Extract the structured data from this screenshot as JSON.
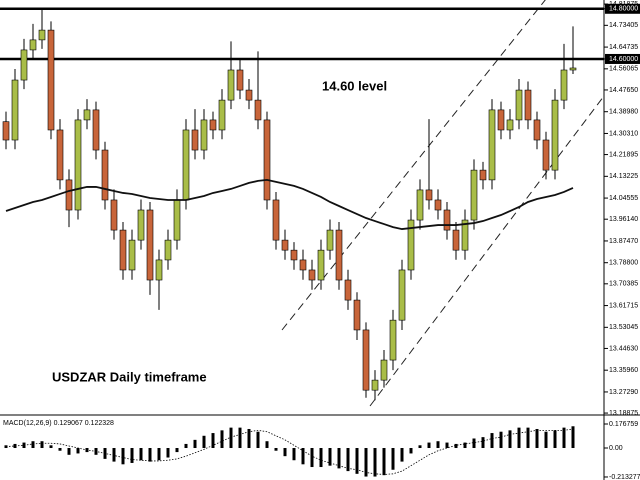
{
  "chart_data": [
    {
      "type": "candlestick",
      "annotations": [
        "14.60 level",
        "USDZAR Daily timeframe"
      ],
      "ylim": [
        13.185,
        14.835
      ],
      "yticks": [
        14.81875,
        {
          "value": 14.8,
          "label": "14.80000"
        },
        14.73405,
        14.64735,
        {
          "value": 14.6,
          "label": "14.60000"
        },
        14.56065,
        {
          "value": 14.4765,
          "label": "14.47650"
        },
        {
          "value": 14.3898,
          "label": "14.38980"
        },
        {
          "value": 14.3031,
          "label": "14.30310"
        },
        14.21895,
        14.13225,
        14.04555,
        {
          "value": 13.9614,
          "label": "13.96140"
        },
        {
          "value": 13.8747,
          "label": "13.87470"
        },
        {
          "value": 13.788,
          "label": "13.78800"
        },
        13.70385,
        13.61715,
        13.53045,
        {
          "value": 13.4463,
          "label": "13.44630"
        },
        {
          "value": 13.3596,
          "label": "13.35960"
        },
        {
          "value": 13.2729,
          "label": "13.27290"
        },
        13.18875
      ],
      "levels": [
        14.8,
        14.6
      ],
      "up_color": "#a9bd48",
      "down_color": "#c8653a",
      "open": [
        14.35,
        14.277,
        14.516,
        14.636,
        14.676,
        14.715,
        14.317,
        14.118,
        13.998,
        14.357,
        14.397,
        14.237,
        14.038,
        13.918,
        13.759,
        13.878,
        13.998,
        13.719,
        13.799,
        13.878,
        14.038,
        14.317,
        14.237,
        14.357,
        14.317,
        14.436,
        14.556,
        14.476,
        14.436,
        14.357,
        14.038,
        13.878,
        13.838,
        13.799,
        13.759,
        13.719,
        13.838,
        13.918,
        13.719,
        13.639,
        13.52,
        13.28,
        13.32,
        13.4,
        13.559,
        13.759,
        13.958,
        14.078,
        14.038,
        13.998,
        13.918,
        13.838,
        13.958,
        14.157,
        14.118,
        14.397,
        14.317,
        14.357,
        14.476,
        14.357,
        14.277,
        14.157,
        14.436,
        14.556
      ],
      "high": [
        14.39,
        14.56,
        14.68,
        14.74,
        14.8,
        14.75,
        14.36,
        14.16,
        14.4,
        14.44,
        14.43,
        14.27,
        14.08,
        13.95,
        13.92,
        14.04,
        14.03,
        13.84,
        13.92,
        14.08,
        14.36,
        14.4,
        14.4,
        14.39,
        14.48,
        14.67,
        14.6,
        14.52,
        14.63,
        14.39,
        14.07,
        13.92,
        13.87,
        13.84,
        13.8,
        13.88,
        13.96,
        13.95,
        13.76,
        13.67,
        13.55,
        13.36,
        13.44,
        13.6,
        13.8,
        14.0,
        14.12,
        14.36,
        14.08,
        14.03,
        13.95,
        14.0,
        14.2,
        14.19,
        14.44,
        14.43,
        14.4,
        14.52,
        14.51,
        14.39,
        14.31,
        14.48,
        14.66,
        14.73
      ],
      "low": [
        14.24,
        14.24,
        14.48,
        14.6,
        14.64,
        14.28,
        14.08,
        13.93,
        13.96,
        14.32,
        14.2,
        14.0,
        13.88,
        13.72,
        13.72,
        13.84,
        13.66,
        13.6,
        13.76,
        13.84,
        14.0,
        14.2,
        14.2,
        14.28,
        14.28,
        14.4,
        14.44,
        14.4,
        14.32,
        14.0,
        13.84,
        13.8,
        13.76,
        13.72,
        13.68,
        13.68,
        13.8,
        13.68,
        13.6,
        13.48,
        13.25,
        13.24,
        13.29,
        13.36,
        13.52,
        13.72,
        13.92,
        14.0,
        13.96,
        13.88,
        13.8,
        13.8,
        13.92,
        14.08,
        14.08,
        14.28,
        14.28,
        14.32,
        14.32,
        14.24,
        14.12,
        14.12,
        14.4,
        14.54
      ],
      "close": [
        14.277,
        14.516,
        14.636,
        14.676,
        14.715,
        14.317,
        14.118,
        13.998,
        14.357,
        14.397,
        14.237,
        14.038,
        13.918,
        13.759,
        13.878,
        13.998,
        13.719,
        13.799,
        13.878,
        14.038,
        14.317,
        14.237,
        14.357,
        14.317,
        14.436,
        14.556,
        14.476,
        14.436,
        14.357,
        14.038,
        13.878,
        13.838,
        13.799,
        13.759,
        13.719,
        13.838,
        13.918,
        13.719,
        13.639,
        13.52,
        13.28,
        13.32,
        13.4,
        13.559,
        13.759,
        13.958,
        14.078,
        14.038,
        13.998,
        13.918,
        13.838,
        13.958,
        14.157,
        14.118,
        14.397,
        14.317,
        14.357,
        14.476,
        14.357,
        14.277,
        14.157,
        14.436,
        14.556,
        14.564
      ],
      "series": [
        {
          "color": "#111111",
          "values": [
            13.994,
            14.006,
            14.018,
            14.03,
            14.038,
            14.05,
            14.062,
            14.074,
            14.082,
            14.09,
            14.09,
            14.082,
            14.074,
            14.066,
            14.062,
            14.054,
            14.046,
            14.042,
            14.038,
            14.038,
            14.038,
            14.046,
            14.054,
            14.066,
            14.074,
            14.082,
            14.094,
            14.106,
            14.114,
            14.118,
            14.11,
            14.102,
            14.094,
            14.082,
            14.066,
            14.05,
            14.03,
            14.014,
            13.998,
            13.982,
            13.966,
            13.954,
            13.942,
            13.93,
            13.922,
            13.926,
            13.93,
            13.934,
            13.938,
            13.938,
            13.938,
            13.942,
            13.946,
            13.954,
            13.966,
            13.978,
            13.994,
            14.01,
            14.03,
            14.042,
            14.05,
            14.058,
            14.07,
            14.086
          ]
        }
      ]
    },
    {
      "type": "bar",
      "title": "MACD(12,26,9) 0.129067 0.122328",
      "ylim": [
        -0.2355,
        0.2209
      ],
      "yticks": [
        0.176759,
        {
          "value": 0,
          "label": "0.00"
        },
        -0.213277
      ],
      "series": [
        {
          "color": "#000000",
          "values": [
            0.02,
            0.03,
            0.04,
            0.05,
            0.05,
            0.02,
            -0.02,
            -0.05,
            -0.04,
            -0.03,
            -0.05,
            -0.08,
            -0.1,
            -0.12,
            -0.11,
            -0.09,
            -0.1,
            -0.09,
            -0.07,
            -0.03,
            0.03,
            0.06,
            0.09,
            0.11,
            0.13,
            0.15,
            0.15,
            0.14,
            0.12,
            0.05,
            -0.02,
            -0.06,
            -0.09,
            -0.12,
            -0.14,
            -0.14,
            -0.13,
            -0.15,
            -0.17,
            -0.19,
            -0.21,
            -0.21,
            -0.2,
            -0.16,
            -0.1,
            -0.04,
            0.02,
            0.04,
            0.05,
            0.04,
            0.03,
            0.04,
            0.07,
            0.08,
            0.11,
            0.12,
            0.13,
            0.15,
            0.15,
            0.14,
            0.12,
            0.13,
            0.15,
            0.16
          ]
        },
        {
          "color": "#000000",
          "values": [
            0.01,
            0.015,
            0.02,
            0.03,
            0.035,
            0.035,
            0.03,
            0.015,
            0.0,
            -0.015,
            -0.025,
            -0.04,
            -0.055,
            -0.07,
            -0.085,
            -0.09,
            -0.095,
            -0.095,
            -0.09,
            -0.08,
            -0.06,
            -0.035,
            -0.01,
            0.02,
            0.05,
            0.08,
            0.1,
            0.12,
            0.13,
            0.12,
            0.09,
            0.06,
            0.02,
            -0.02,
            -0.06,
            -0.09,
            -0.11,
            -0.13,
            -0.15,
            -0.16,
            -0.18,
            -0.19,
            -0.195,
            -0.19,
            -0.17,
            -0.13,
            -0.09,
            -0.05,
            -0.02,
            0.0,
            0.02,
            0.03,
            0.04,
            0.05,
            0.07,
            0.08,
            0.1,
            0.11,
            0.12,
            0.13,
            0.13,
            0.13,
            0.13,
            0.14
          ]
        }
      ]
    }
  ]
}
